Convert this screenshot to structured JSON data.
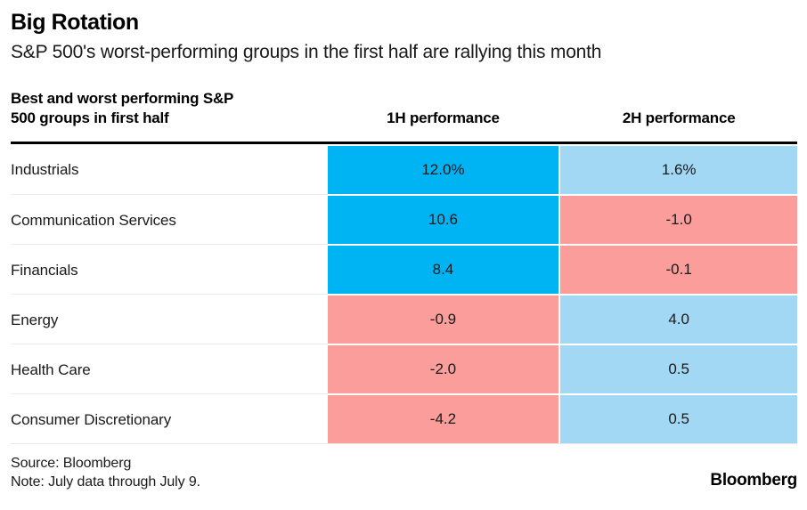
{
  "header": {
    "title": "Big Rotation",
    "subtitle": "S&P 500's worst-performing groups in the first half are rallying this month"
  },
  "table": {
    "row_header_line1": "Best and worst performing S&P",
    "row_header_line2": "500 groups in first half",
    "col1_header": "1H performance",
    "col2_header": "2H performance",
    "rows": [
      {
        "label": "Industrials",
        "cells": [
          {
            "text": "12.0%",
            "tone": "tone-blue"
          },
          {
            "text": "1.6%",
            "tone": "tone-lightblue"
          }
        ]
      },
      {
        "label": "Communication Services",
        "cells": [
          {
            "text": "10.6",
            "tone": "tone-blue"
          },
          {
            "text": "-1.0",
            "tone": "tone-pink"
          }
        ]
      },
      {
        "label": "Financials",
        "cells": [
          {
            "text": "8.4",
            "tone": "tone-blue"
          },
          {
            "text": "-0.1",
            "tone": "tone-pink"
          }
        ]
      },
      {
        "label": "Energy",
        "cells": [
          {
            "text": "-0.9",
            "tone": "tone-pink"
          },
          {
            "text": "4.0",
            "tone": "tone-lightblue"
          }
        ]
      },
      {
        "label": "Health Care",
        "cells": [
          {
            "text": "-2.0",
            "tone": "tone-pink"
          },
          {
            "text": "0.5",
            "tone": "tone-lightblue"
          }
        ]
      },
      {
        "label": "Consumer Discretionary",
        "cells": [
          {
            "text": "-4.2",
            "tone": "tone-pink"
          },
          {
            "text": "0.5",
            "tone": "tone-lightblue"
          }
        ]
      }
    ]
  },
  "footer": {
    "source": "Source: Bloomberg",
    "note": "Note: July data through July 9.",
    "brand": "Bloomberg"
  },
  "colors": {
    "strong_positive_blue": "#00b3f2",
    "mild_positive_light_blue": "#a3d8f4",
    "negative_pink": "#fb9d9b"
  },
  "chart_data": {
    "type": "table",
    "title": "Big Rotation",
    "subtitle": "S&P 500's worst-performing groups in the first half are rallying this month",
    "row_header": "Best and worst performing S&P 500 groups in first half",
    "columns": [
      "1H performance",
      "2H performance"
    ],
    "categories": [
      "Industrials",
      "Communication Services",
      "Financials",
      "Energy",
      "Health Care",
      "Consumer Discretionary"
    ],
    "series": [
      {
        "name": "1H performance",
        "values": [
          12.0,
          10.6,
          8.4,
          -0.9,
          -2.0,
          -4.2
        ]
      },
      {
        "name": "2H performance",
        "values": [
          1.6,
          -1.0,
          -0.1,
          4.0,
          0.5,
          0.5
        ]
      }
    ],
    "units": "%",
    "color_coding": {
      "strong_positive": "#00b3f2",
      "mild_positive": "#a3d8f4",
      "negative": "#fb9d9b"
    },
    "source": "Bloomberg",
    "note": "July data through July 9."
  }
}
